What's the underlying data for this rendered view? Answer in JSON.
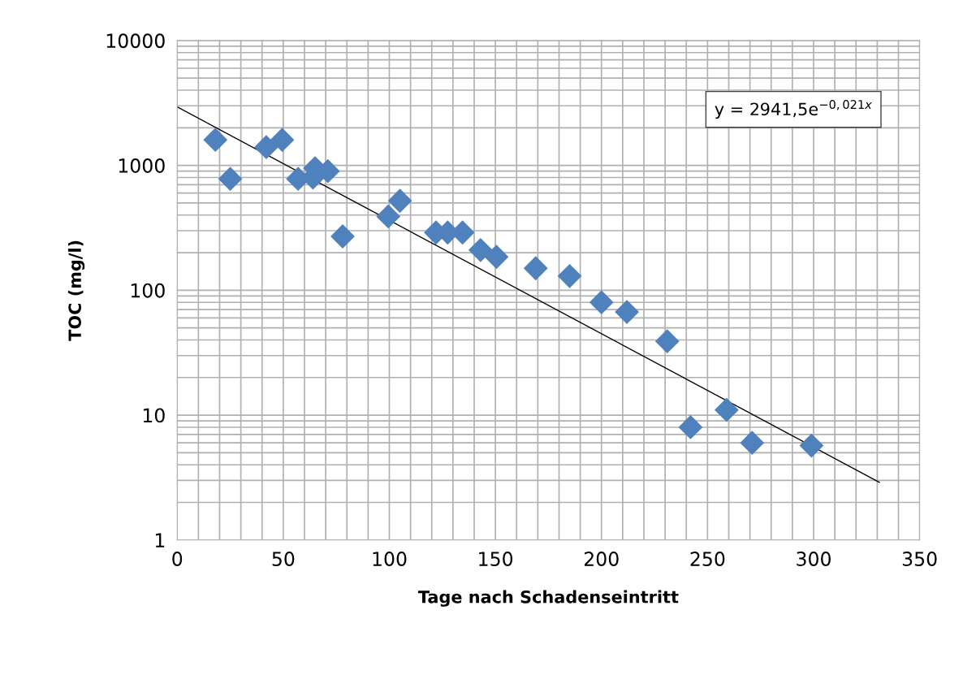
{
  "chart_data": {
    "type": "scatter",
    "xlabel": "Tage nach Schadenseintritt",
    "ylabel": "TOC (mg/l)",
    "log": "y",
    "grid": true,
    "legend": false,
    "marker": "diamond",
    "xlim": [
      0,
      350
    ],
    "xticks": [
      0,
      50,
      100,
      150,
      200,
      250,
      300,
      350
    ],
    "ylim": [
      1,
      10000
    ],
    "yticks": [
      1,
      10,
      100,
      1000,
      10000
    ],
    "series": [
      {
        "color": "#4f81bd",
        "x": [
          18,
          25,
          42,
          49.5,
          57,
          64,
          65,
          71,
          78,
          99.5,
          105,
          122,
          127.5,
          134.5,
          143,
          150.5,
          169,
          185,
          200,
          212,
          231,
          242,
          259,
          271,
          299
        ],
        "values": [
          1600,
          780,
          1400,
          1600,
          780,
          800,
          950,
          900,
          270,
          390,
          520,
          290,
          290,
          290,
          210,
          185,
          150,
          130,
          80,
          67,
          39,
          8,
          11,
          6,
          5.7
        ]
      },
      {
        "type": "line",
        "marker": "none",
        "color": "#000000",
        "x": [
          0,
          331
        ],
        "values": [
          2940,
          2.9
        ]
      }
    ],
    "annotations": [
      "y = 2941,5e$^{−0,021x}$"
    ]
  }
}
